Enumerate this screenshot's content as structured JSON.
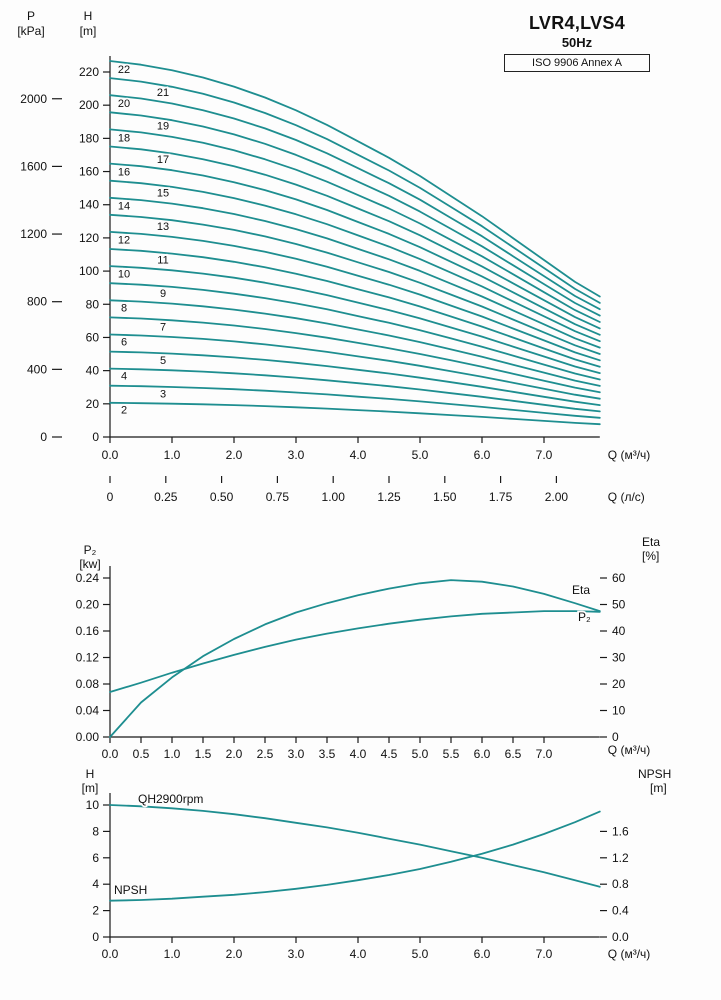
{
  "title_block": {
    "model": "LVR4,LVS4",
    "frequency": "50Hz",
    "standard": "ISO 9906 Annex A"
  },
  "colors": {
    "curve": "#1e8e90",
    "axis": "#1a1a1a",
    "text": "#111111",
    "background": "#fdfdfd"
  },
  "chart_data": [
    {
      "id": "qh-multistage",
      "type": "line",
      "description": "Multi-stage pump Q-H curves, one curve per number of stages",
      "axes": {
        "left_outer": {
          "title": "P",
          "unit": "[kPa]",
          "ticks": [
            "0",
            "400",
            "800",
            "1200",
            "1600",
            "2000"
          ]
        },
        "left_inner": {
          "title": "H",
          "unit": "[m]",
          "ticks": [
            "0",
            "20",
            "40",
            "60",
            "80",
            "100",
            "120",
            "140",
            "160",
            "180",
            "200",
            "220"
          ]
        },
        "bottom_primary": {
          "label": "Q (м³/ч)",
          "ticks": [
            "0.0",
            "1.0",
            "2.0",
            "3.0",
            "4.0",
            "5.0",
            "6.0",
            "7.0"
          ]
        },
        "bottom_secondary": {
          "label": "Q (л/с)",
          "ticks": [
            "0",
            "0.25",
            "0.50",
            "0.75",
            "1.00",
            "1.25",
            "1.50",
            "1.75",
            "2.00"
          ]
        }
      },
      "x_max": 7.9,
      "x": [
        0,
        0.5,
        1,
        1.5,
        2,
        2.5,
        3,
        3.5,
        4,
        4.5,
        5,
        5.5,
        6,
        6.5,
        7,
        7.5,
        7.9
      ],
      "single_stage_head_m": [
        10.3,
        10.2,
        10.05,
        9.85,
        9.6,
        9.3,
        8.95,
        8.55,
        8.1,
        7.65,
        7.15,
        6.6,
        6.05,
        5.45,
        4.85,
        4.25,
        3.85
      ],
      "stage_labels": [
        22,
        21,
        20,
        19,
        18,
        17,
        16,
        15,
        14,
        13,
        12,
        11,
        10,
        9,
        8,
        7,
        6,
        5,
        4,
        3,
        2
      ]
    },
    {
      "id": "power-efficiency",
      "type": "line",
      "axes": {
        "left": {
          "title": "P₂",
          "unit": "[kw]",
          "ticks": [
            "0.00",
            "0.04",
            "0.08",
            "0.12",
            "0.16",
            "0.20",
            "0.24"
          ]
        },
        "right": {
          "title": "Eta",
          "unit": "[%]",
          "ticks": [
            "0",
            "10",
            "20",
            "30",
            "40",
            "50",
            "60"
          ]
        },
        "bottom": {
          "label": "Q (м³/ч)",
          "ticks": [
            "0.0",
            "0.5",
            "1.0",
            "1.5",
            "2.0",
            "2.5",
            "3.0",
            "3.5",
            "4.0",
            "4.5",
            "5.0",
            "5.5",
            "6.0",
            "6.5",
            "7.0"
          ]
        }
      },
      "x": [
        0,
        0.5,
        1,
        1.5,
        2,
        2.5,
        3,
        3.5,
        4,
        4.5,
        5,
        5.5,
        6,
        6.5,
        7,
        7.5,
        7.9
      ],
      "series": [
        {
          "name": "Eta",
          "axis": "right",
          "unit": "%",
          "values": [
            0,
            13,
            22.5,
            30.5,
            37,
            42.5,
            47,
            50.5,
            53.5,
            56,
            58,
            59.2,
            58.6,
            56.8,
            54,
            50.5,
            47.5
          ]
        },
        {
          "name": "P₂",
          "axis": "left",
          "unit": "kW",
          "values": [
            0.068,
            0.082,
            0.097,
            0.111,
            0.124,
            0.136,
            0.147,
            0.156,
            0.164,
            0.171,
            0.177,
            0.182,
            0.186,
            0.188,
            0.19,
            0.19,
            0.189
          ]
        }
      ]
    },
    {
      "id": "qh-npsh",
      "type": "line",
      "axes": {
        "left": {
          "title": "H",
          "unit": "[m]",
          "ticks": [
            "0",
            "2",
            "4",
            "6",
            "8",
            "10"
          ]
        },
        "right": {
          "title": "NPSH",
          "unit": "[m]",
          "ticks": [
            "0.0",
            "0.4",
            "0.8",
            "1.2",
            "1.6"
          ]
        },
        "bottom": {
          "label": "Q (м³/ч)",
          "ticks": [
            "0.0",
            "1.0",
            "2.0",
            "3.0",
            "4.0",
            "5.0",
            "6.0",
            "7.0"
          ]
        }
      },
      "x": [
        0,
        0.5,
        1,
        1.5,
        2,
        2.5,
        3,
        3.5,
        4,
        4.5,
        5,
        5.5,
        6,
        6.5,
        7,
        7.5,
        7.9
      ],
      "series": [
        {
          "name": "QH2900rpm",
          "axis": "left",
          "unit": "m",
          "values": [
            10,
            9.9,
            9.75,
            9.55,
            9.3,
            9,
            8.65,
            8.3,
            7.9,
            7.45,
            7,
            6.5,
            6,
            5.45,
            4.9,
            4.3,
            3.8
          ]
        },
        {
          "name": "NPSH",
          "axis": "right",
          "unit": "m",
          "values": [
            0.55,
            0.56,
            0.58,
            0.61,
            0.64,
            0.68,
            0.73,
            0.79,
            0.86,
            0.94,
            1.03,
            1.14,
            1.26,
            1.4,
            1.56,
            1.74,
            1.9
          ]
        }
      ]
    }
  ]
}
